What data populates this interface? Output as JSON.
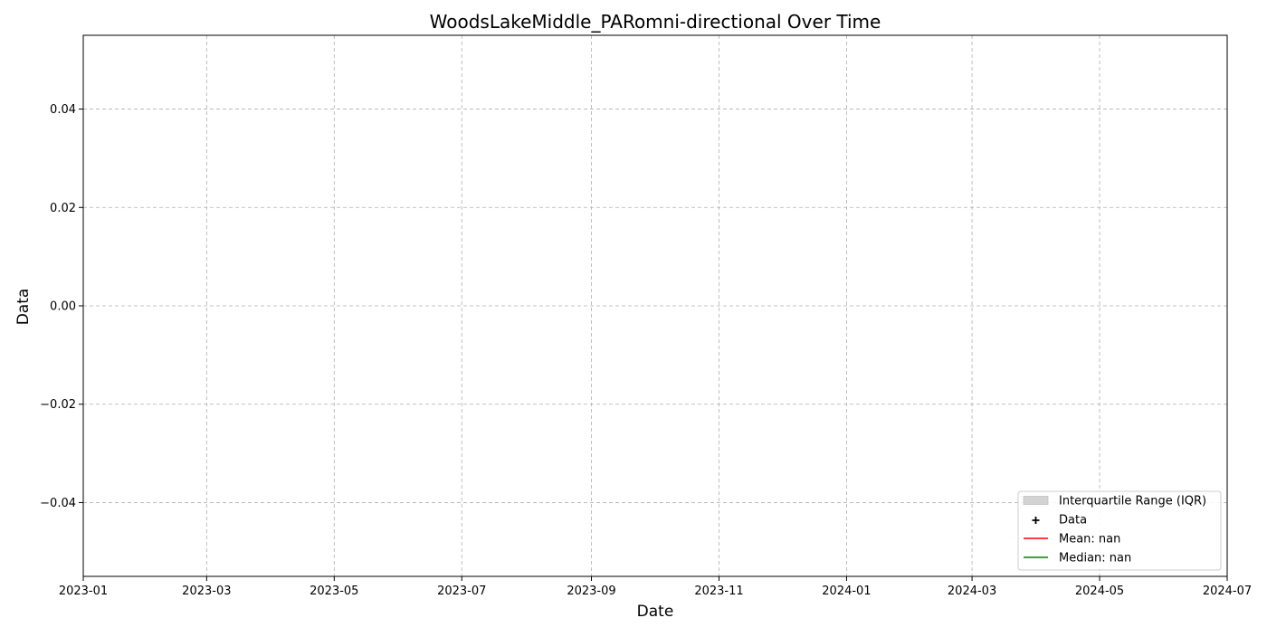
{
  "chart_data": {
    "type": "scatter",
    "title": "WoodsLakeMiddle_PARomni-directional Over Time",
    "xlabel": "Date",
    "ylabel": "Data",
    "xlim": [
      "2023-01-01",
      "2024-07-01"
    ],
    "ylim": [
      -0.055,
      0.055
    ],
    "x_ticks": [
      "2023-01",
      "2023-03",
      "2023-05",
      "2023-07",
      "2023-09",
      "2023-11",
      "2024-01",
      "2024-03",
      "2024-05",
      "2024-07"
    ],
    "y_ticks": [
      -0.04,
      -0.02,
      0.0,
      0.02,
      0.04
    ],
    "y_tick_labels": [
      "−0.04",
      "−0.02",
      "0.00",
      "0.02",
      "0.04"
    ],
    "grid": true,
    "legend_position": "lower-right",
    "series": [],
    "legend": [
      {
        "label": "Interquartile Range (IQR)",
        "kind": "patch",
        "color": "#d3d3d3"
      },
      {
        "label": "Data",
        "kind": "marker",
        "color": "#000000"
      },
      {
        "label": "Mean: nan",
        "kind": "line",
        "color": "#ff0000"
      },
      {
        "label": "Median: nan",
        "kind": "line",
        "color": "#008000"
      }
    ]
  }
}
